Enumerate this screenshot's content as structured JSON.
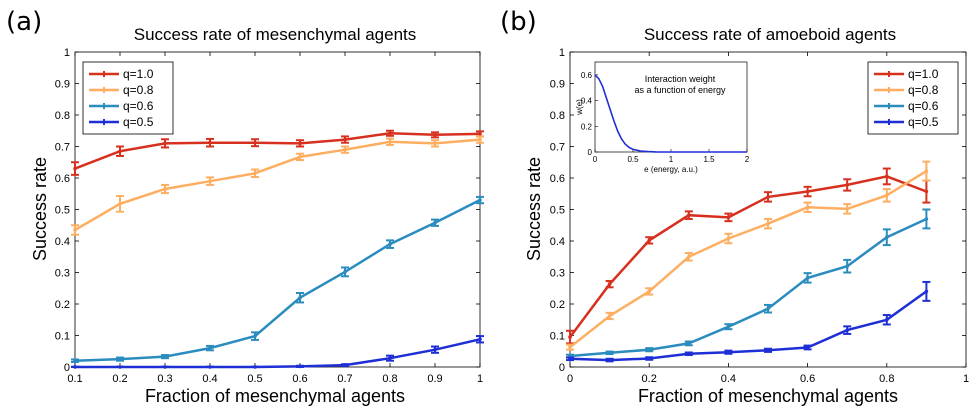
{
  "panel_labels": [
    "(a)",
    "(b)"
  ],
  "chart_data": [
    {
      "type": "line",
      "title": "Success rate of mesenchymal agents",
      "xlabel": "Fraction of mesenchymal agents",
      "ylabel": "Success rate",
      "xlim": [
        0.1,
        1
      ],
      "ylim": [
        0,
        1
      ],
      "xticks": [
        "0.1",
        "0.2",
        "0.3",
        "0.4",
        "0.5",
        "0.6",
        "0.7",
        "0.8",
        "0.9",
        "1"
      ],
      "yticks": [
        "0",
        "0.1",
        "0.2",
        "0.3",
        "0.4",
        "0.5",
        "0.6",
        "0.7",
        "0.8",
        "0.9",
        "1"
      ],
      "legend_position": "top-left",
      "error_bars": true,
      "x": [
        0.1,
        0.2,
        0.3,
        0.4,
        0.5,
        0.6,
        0.7,
        0.8,
        0.9,
        1.0
      ],
      "series": [
        {
          "name": "q=1.0",
          "color": "#d7301f",
          "values": [
            0.63,
            0.685,
            0.71,
            0.712,
            0.712,
            0.71,
            0.722,
            0.742,
            0.737,
            0.74
          ],
          "errors": [
            0.02,
            0.015,
            0.013,
            0.012,
            0.011,
            0.01,
            0.01,
            0.008,
            0.008,
            0.008
          ]
        },
        {
          "name": "q=0.8",
          "color": "#fdae61",
          "values": [
            0.435,
            0.518,
            0.565,
            0.59,
            0.615,
            0.667,
            0.69,
            0.715,
            0.71,
            0.722
          ],
          "errors": [
            0.015,
            0.025,
            0.013,
            0.012,
            0.012,
            0.01,
            0.01,
            0.01,
            0.01,
            0.01
          ]
        },
        {
          "name": "q=0.6",
          "color": "#2b8cbe",
          "values": [
            0.02,
            0.025,
            0.033,
            0.06,
            0.098,
            0.22,
            0.302,
            0.39,
            0.458,
            0.53
          ],
          "errors": [
            0.004,
            0.005,
            0.005,
            0.007,
            0.012,
            0.015,
            0.014,
            0.012,
            0.01,
            0.01
          ]
        },
        {
          "name": "q=0.5",
          "color": "#1f2fd6",
          "values": [
            0.0,
            0.0,
            0.0,
            0.0,
            0.0,
            0.002,
            0.006,
            0.028,
            0.055,
            0.088
          ],
          "errors": [
            0.001,
            0.001,
            0.001,
            0.001,
            0.001,
            0.002,
            0.003,
            0.008,
            0.01,
            0.01
          ]
        }
      ]
    },
    {
      "type": "line",
      "title": "Success rate of amoeboid agents",
      "xlabel": "Fraction of mesenchymal agents",
      "ylabel": "Success rate",
      "xlim": [
        0,
        1
      ],
      "ylim": [
        0,
        1
      ],
      "xticks": [
        "0",
        "0.2",
        "0.4",
        "0.6",
        "0.8",
        "1"
      ],
      "yticks": [
        "0",
        "0.1",
        "0.2",
        "0.3",
        "0.4",
        "0.5",
        "0.6",
        "0.7",
        "0.8",
        "0.9",
        "1"
      ],
      "legend_position": "top-right",
      "error_bars": true,
      "x": [
        0.0,
        0.1,
        0.2,
        0.3,
        0.4,
        0.5,
        0.6,
        0.7,
        0.8,
        0.9
      ],
      "series": [
        {
          "name": "q=1.0",
          "color": "#d7301f",
          "values": [
            0.095,
            0.263,
            0.402,
            0.482,
            0.475,
            0.54,
            0.557,
            0.578,
            0.605,
            0.557
          ],
          "errors": [
            0.02,
            0.01,
            0.01,
            0.012,
            0.012,
            0.015,
            0.015,
            0.018,
            0.025,
            0.035
          ]
        },
        {
          "name": "q=0.8",
          "color": "#fdae61",
          "values": [
            0.063,
            0.162,
            0.24,
            0.35,
            0.408,
            0.455,
            0.507,
            0.502,
            0.545,
            0.622
          ],
          "errors": [
            0.008,
            0.01,
            0.01,
            0.012,
            0.015,
            0.015,
            0.015,
            0.015,
            0.02,
            0.03
          ]
        },
        {
          "name": "q=0.6",
          "color": "#2b8cbe",
          "values": [
            0.035,
            0.045,
            0.055,
            0.075,
            0.128,
            0.185,
            0.283,
            0.32,
            0.412,
            0.47
          ],
          "errors": [
            0.004,
            0.004,
            0.005,
            0.006,
            0.008,
            0.012,
            0.015,
            0.02,
            0.025,
            0.03
          ]
        },
        {
          "name": "q=0.5",
          "color": "#1f2fd6",
          "values": [
            0.026,
            0.022,
            0.027,
            0.042,
            0.047,
            0.053,
            0.062,
            0.117,
            0.15,
            0.24
          ],
          "errors": [
            0.004,
            0.004,
            0.004,
            0.004,
            0.005,
            0.005,
            0.006,
            0.012,
            0.015,
            0.03
          ]
        }
      ],
      "inset": {
        "type": "line",
        "title": "Interaction weight\nas a function of energy",
        "title_lines": [
          "Interaction weight",
          "as a function of energy"
        ],
        "xlabel": "e (energy, a.u.)",
        "ylabel": "w(e)",
        "xlim": [
          0,
          2
        ],
        "ylim": [
          0,
          0.7
        ],
        "xticks": [
          "0",
          "0.5",
          "1",
          "1.5",
          "2"
        ],
        "yticks": [
          "0",
          "0.2",
          "0.4",
          "0.6"
        ],
        "color": "#1f2fd6",
        "x": [
          0,
          0.05,
          0.1,
          0.15,
          0.2,
          0.25,
          0.3,
          0.35,
          0.4,
          0.45,
          0.5,
          0.6,
          0.7,
          0.8,
          0.9,
          1.0,
          1.5,
          2.0
        ],
        "values": [
          0.6,
          0.57,
          0.51,
          0.42,
          0.33,
          0.24,
          0.16,
          0.1,
          0.06,
          0.035,
          0.02,
          0.008,
          0.003,
          0.001,
          0.0,
          0.0,
          0.0,
          0.0
        ]
      }
    }
  ]
}
